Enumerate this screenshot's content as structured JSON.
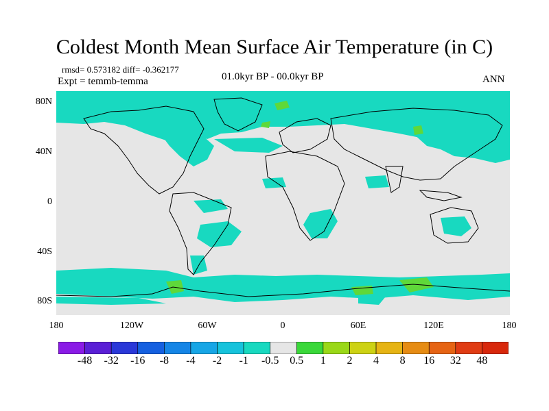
{
  "title": "Coldest Month Mean Surface Air Temperature (in C)",
  "stats": "rmsd= 0.573182 diff= -0.362177",
  "expt": "Expt = temmb-temma",
  "period": "01.0kyr BP - 00.0kyr BP",
  "season": "ANN",
  "lat_labels": [
    "80N",
    "40N",
    "0",
    "40S",
    "80S"
  ],
  "lon_labels": [
    "180",
    "120W",
    "60W",
    "0",
    "60E",
    "120E",
    "180"
  ],
  "colorbar": {
    "labels": [
      "-48",
      "-32",
      "-16",
      "-8",
      "-4",
      "-2",
      "-1",
      "-0.5",
      "0.5",
      "1",
      "2",
      "4",
      "8",
      "16",
      "32",
      "48"
    ],
    "colors": [
      "#8a1be6",
      "#5a1fd6",
      "#2a38d8",
      "#1560e0",
      "#1585e6",
      "#17a6e6",
      "#16c3dc",
      "#18d9c0",
      "#e6e6e6",
      "#3ad83a",
      "#9ad818",
      "#cdd214",
      "#e6b414",
      "#e68c14",
      "#e66414",
      "#e03c14"
    ]
  },
  "map": {
    "background_color": "#e6e6e6",
    "cool_color": "#18d9c0",
    "warm_color": "#5fd83a",
    "coast_color": "#000000"
  }
}
